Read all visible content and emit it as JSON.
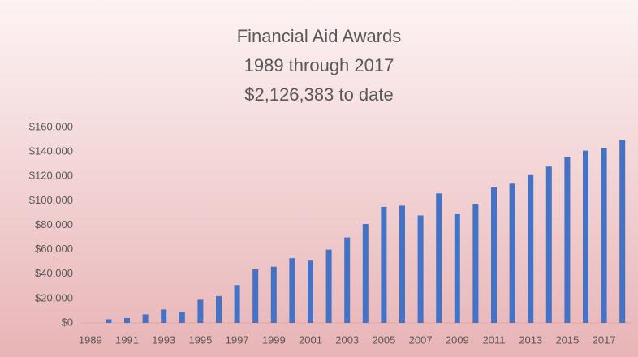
{
  "chart_data": {
    "type": "bar",
    "title": "Financial Aid Awards",
    "subtitle": [
      "1989 through 2017",
      "$2,126,383 to date"
    ],
    "categories": [
      "1989",
      null,
      "1991",
      null,
      "1993",
      null,
      "1995",
      null,
      "1997",
      null,
      "1999",
      null,
      "2001",
      null,
      "2003",
      null,
      "2005",
      null,
      "2007",
      null,
      "2009",
      null,
      "2011",
      null,
      "2013",
      null,
      "2015",
      null,
      "2017",
      null
    ],
    "values": [
      0,
      3000,
      4000,
      7000,
      11000,
      9000,
      19000,
      22000,
      31000,
      44000,
      46000,
      53000,
      51000,
      60000,
      70000,
      81000,
      95000,
      96000,
      88000,
      106000,
      89000,
      97000,
      111000,
      114000,
      121000,
      128000,
      136000,
      141000,
      143000,
      150000
    ],
    "color": "#4472c4",
    "ylim": [
      0,
      160000
    ],
    "yticks": [
      {
        "value": 0,
        "label": "$0"
      },
      {
        "value": 20000,
        "label": "$20,000"
      },
      {
        "value": 40000,
        "label": "$40,000"
      },
      {
        "value": 60000,
        "label": "$60,000"
      },
      {
        "value": 80000,
        "label": "$80,000"
      },
      {
        "value": 100000,
        "label": "$100,000"
      },
      {
        "value": 120000,
        "label": "$120,000"
      },
      {
        "value": 140000,
        "label": "$140,000"
      },
      {
        "value": 160000,
        "label": "$160,000"
      }
    ],
    "grid": false
  }
}
